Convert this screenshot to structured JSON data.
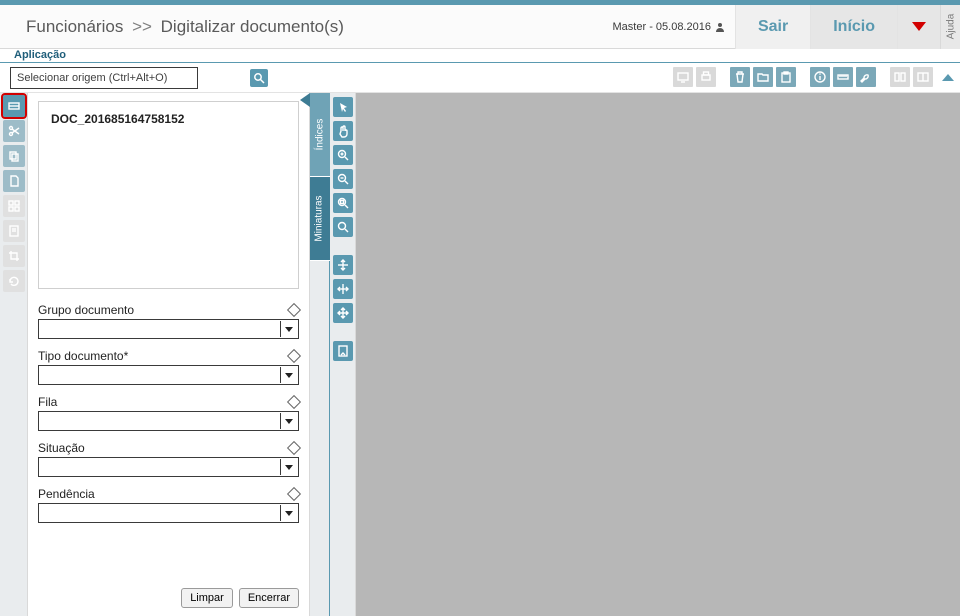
{
  "colors": {
    "primary": "#5a99b0",
    "primary_dark": "#3e7c94",
    "danger": "#d20000",
    "viewer_bg": "#b7b7b7",
    "rail_bg": "#e9ecee",
    "disabled": "#d9d9d9"
  },
  "header": {
    "breadcrumb_root": "Funcionários",
    "breadcrumb_sep": ">>",
    "breadcrumb_page": "Digitalizar documento(s)",
    "user_label": "Master - 05.08.2016",
    "btn_sair": "Sair",
    "btn_inicio": "Início",
    "ajuda": "Ajuda"
  },
  "appbar": {
    "label": "Aplicação"
  },
  "origin": {
    "placeholder": "Selecionar origem (Ctrl+Alt+O)"
  },
  "top_toolbar_icons": [
    {
      "name": "screen-icon",
      "enabled": false
    },
    {
      "name": "print-icon",
      "enabled": false
    },
    {
      "name": "trash-icon",
      "enabled": true
    },
    {
      "name": "folder-icon",
      "enabled": true
    },
    {
      "name": "clipboard-icon",
      "enabled": true
    },
    {
      "name": "info-icon",
      "enabled": true
    },
    {
      "name": "ruler-icon",
      "enabled": true
    },
    {
      "name": "wrench-icon",
      "enabled": true
    },
    {
      "name": "layout-a-icon",
      "enabled": false
    },
    {
      "name": "layout-b-icon",
      "enabled": false
    }
  ],
  "left_rail_icons": [
    {
      "name": "scan-icon",
      "active": true,
      "enabled": true
    },
    {
      "name": "scissors-icon",
      "active": false,
      "enabled": true
    },
    {
      "name": "copy-icon",
      "active": false,
      "enabled": true
    },
    {
      "name": "page-icon",
      "active": false,
      "enabled": true
    },
    {
      "name": "grid-icon",
      "active": false,
      "enabled": false
    },
    {
      "name": "doc-icon",
      "active": false,
      "enabled": false
    },
    {
      "name": "crop-icon",
      "active": false,
      "enabled": false
    },
    {
      "name": "rotate-icon",
      "active": false,
      "enabled": false
    }
  ],
  "document": {
    "name": "DOC_201685164758152"
  },
  "fields": {
    "grupo": {
      "label": "Grupo documento",
      "value": ""
    },
    "tipo": {
      "label": "Tipo documento*",
      "value": ""
    },
    "fila": {
      "label": "Fila",
      "value": ""
    },
    "situacao": {
      "label": "Situação",
      "value": ""
    },
    "pendencia": {
      "label": "Pendência",
      "value": ""
    }
  },
  "panel_buttons": {
    "limpar": "Limpar",
    "encerrar": "Encerrar"
  },
  "vtabs": {
    "indices": "Índices",
    "miniaturas": "Miniaturas"
  },
  "viewer_rail_icons": [
    {
      "name": "pointer-icon"
    },
    {
      "name": "hand-icon"
    },
    {
      "name": "zoom-in-icon"
    },
    {
      "name": "zoom-out-icon"
    },
    {
      "name": "zoom-region-icon"
    },
    {
      "name": "zoom-reset-icon"
    },
    {
      "gap": true
    },
    {
      "name": "fit-height-icon"
    },
    {
      "name": "fit-width-icon"
    },
    {
      "name": "move-icon"
    },
    {
      "gap": true
    },
    {
      "name": "page-nav-icon"
    }
  ]
}
